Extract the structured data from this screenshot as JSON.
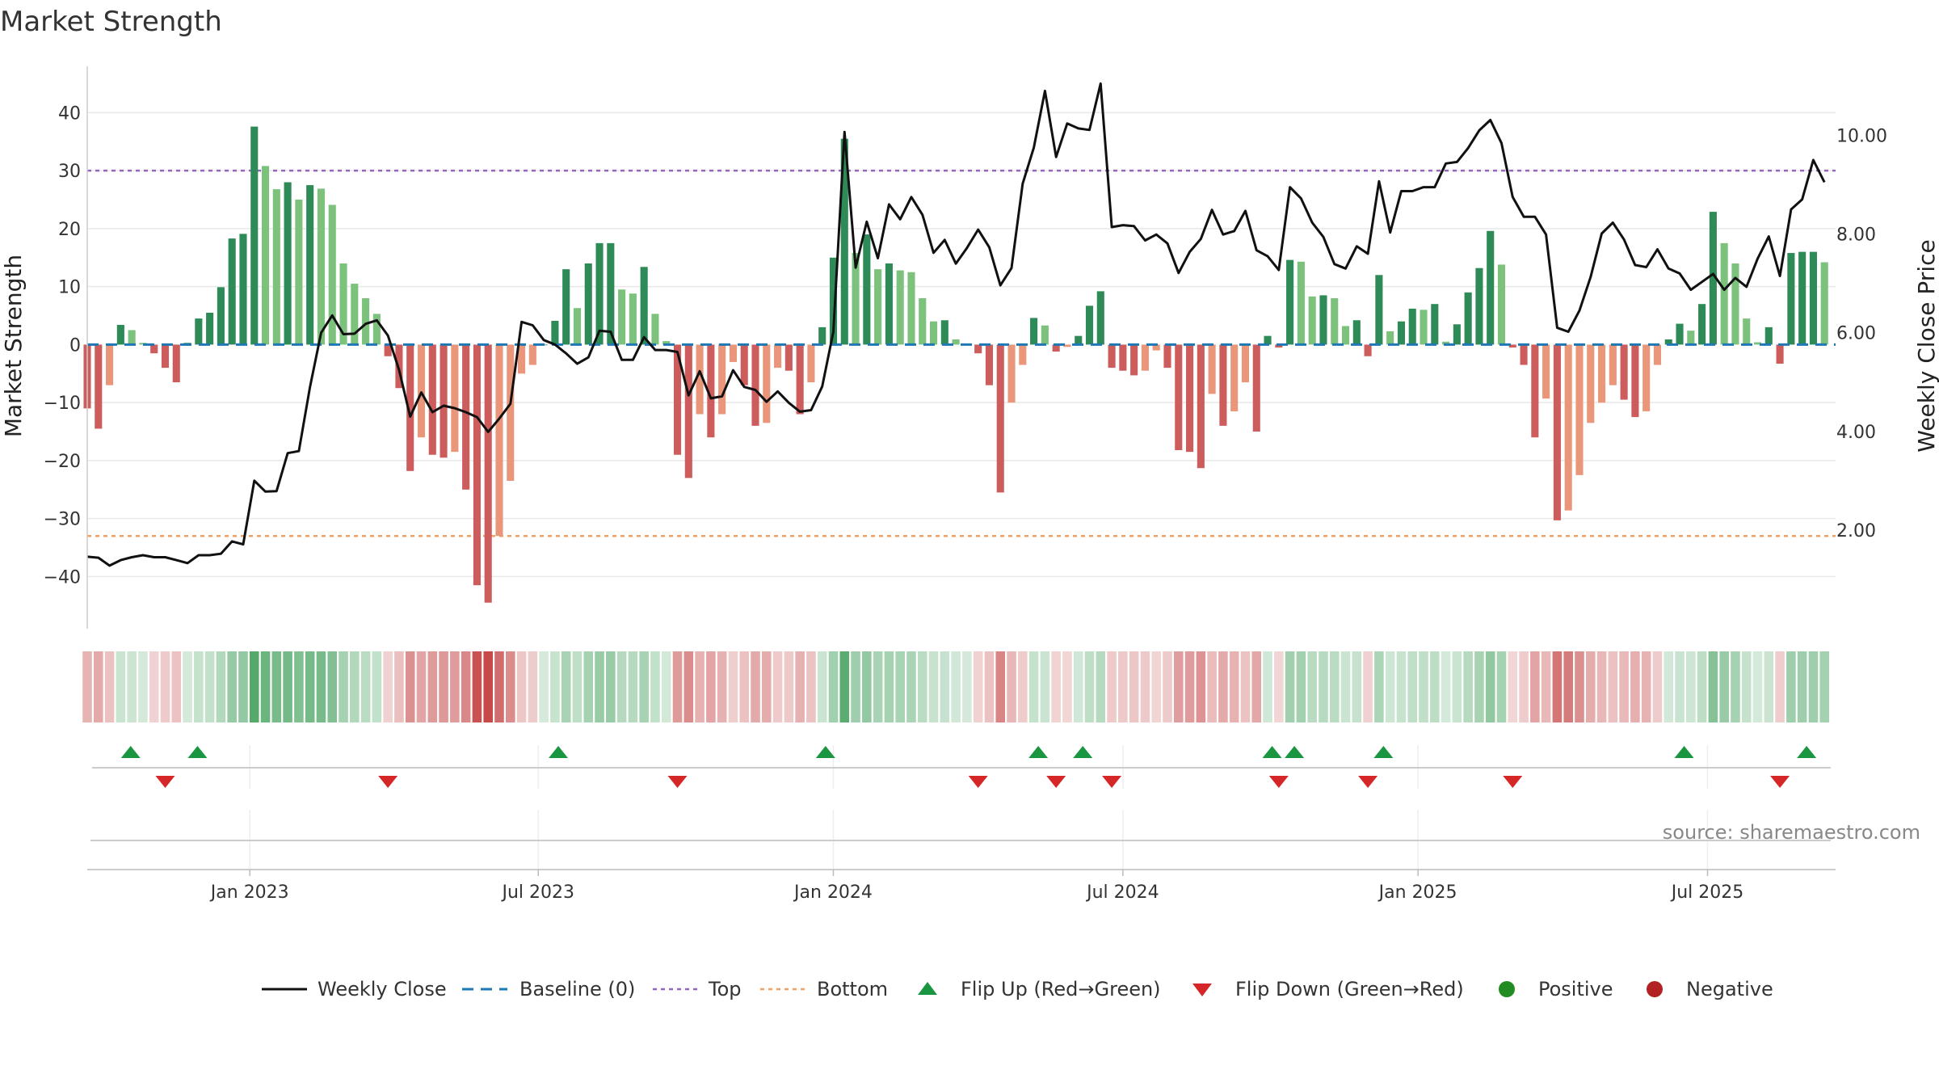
{
  "chart_data": {
    "type": "bar+line",
    "title": "Market Strength",
    "source": "source: sharemaestro.com",
    "ylabel_left": "Market Strength",
    "ylabel_right": "Weekly Close Price",
    "ylim_left": [
      -49,
      48
    ],
    "ylim_right": [
      0.0,
      11.4
    ],
    "yticks_left": [
      {
        "v": 40,
        "label": "40"
      },
      {
        "v": 30,
        "label": "30"
      },
      {
        "v": 20,
        "label": "20"
      },
      {
        "v": 10,
        "label": "10"
      },
      {
        "v": 0,
        "label": "0"
      },
      {
        "v": -10,
        "label": "−10"
      },
      {
        "v": -20,
        "label": "−20"
      },
      {
        "v": -30,
        "label": "−30"
      },
      {
        "v": -40,
        "label": "−40"
      }
    ],
    "yticks_right": [
      {
        "v": 10,
        "label": "10.00"
      },
      {
        "v": 8,
        "label": "8.00"
      },
      {
        "v": 6,
        "label": "6.00"
      },
      {
        "v": 4,
        "label": "4.00"
      },
      {
        "v": 2,
        "label": "2.00"
      }
    ],
    "x_range_weeks": [
      0,
      157
    ],
    "xticks": [
      {
        "week": 14.6,
        "label": "Jan 2023"
      },
      {
        "week": 40.5,
        "label": "Jul 2023"
      },
      {
        "week": 67.0,
        "label": "Jan 2024"
      },
      {
        "week": 93.0,
        "label": "Jul 2024"
      },
      {
        "week": 119.5,
        "label": "Jan 2025"
      },
      {
        "week": 145.5,
        "label": "Jul 2025"
      }
    ],
    "top_threshold": 30,
    "bottom_threshold": -33,
    "bars": [
      -11.0,
      -14.5,
      -7.0,
      3.4,
      2.5,
      0.3,
      -1.5,
      -4.0,
      -6.5,
      0.3,
      4.5,
      5.5,
      9.9,
      18.3,
      19.1,
      37.6,
      30.8,
      26.8,
      28.0,
      25.0,
      27.5,
      26.9,
      24.1,
      14.0,
      10.5,
      8.0,
      5.3,
      -2.0,
      -7.5,
      -21.8,
      -16.0,
      -19.0,
      -19.5,
      -18.5,
      -25.0,
      -41.5,
      -44.5,
      -33.0,
      -23.5,
      -5.0,
      -3.5,
      0.0,
      4.1,
      13.0,
      6.3,
      14.0,
      17.5,
      17.5,
      9.5,
      8.8,
      13.4,
      5.3,
      0.6,
      -19.0,
      -23.0,
      -12.0,
      -16.0,
      -12.0,
      -3.0,
      -7.0,
      -14.0,
      -13.5,
      -4.0,
      -4.5,
      -12.0,
      -6.5,
      3.0,
      15.0,
      35.5,
      15.8,
      19.0,
      13.0,
      14.0,
      12.8,
      12.5,
      8.0,
      4.0,
      4.2,
      0.9,
      0.2,
      -1.5,
      -7.0,
      -25.5,
      -10.0,
      -3.5,
      4.6,
      3.3,
      -1.2,
      -0.4,
      1.5,
      6.7,
      9.2,
      -4.0,
      -4.5,
      -5.3,
      -4.5,
      -1.0,
      -4.0,
      -18.2,
      -18.5,
      -21.3,
      -8.5,
      -14.0,
      -11.5,
      -6.5,
      -15.0,
      1.5,
      -0.5,
      14.6,
      14.3,
      8.3,
      8.5,
      8.0,
      3.2,
      4.2,
      -2.0,
      12.0,
      2.3,
      4.0,
      6.2,
      6.0,
      7.0,
      0.5,
      3.5,
      9.0,
      13.2,
      19.6,
      13.8,
      -0.5,
      -3.5,
      -16.0,
      -9.3,
      -30.3,
      -28.6,
      -22.5,
      -13.5,
      -10.0,
      -7.0,
      -9.5,
      -12.5,
      -11.5,
      -3.5,
      0.9,
      3.6,
      2.4,
      7.0,
      22.9,
      17.5,
      14.0,
      4.5,
      0.4,
      3.0,
      -3.3,
      15.8,
      16.0,
      16.0,
      14.2
    ],
    "close": [
      1.46,
      1.44,
      1.28,
      1.39,
      1.45,
      1.49,
      1.45,
      1.45,
      1.39,
      1.33,
      1.49,
      1.49,
      1.52,
      1.77,
      1.71,
      3.0,
      2.78,
      2.79,
      3.56,
      3.6,
      4.9,
      6.0,
      6.35,
      5.97,
      5.98,
      6.18,
      6.25,
      5.94,
      5.25,
      4.3,
      4.79,
      4.39,
      4.52,
      4.47,
      4.39,
      4.29,
      3.99,
      4.26,
      4.56,
      6.22,
      6.15,
      5.85,
      5.76,
      5.58,
      5.37,
      5.5,
      6.04,
      6.02,
      5.45,
      5.45,
      5.91,
      5.65,
      5.65,
      5.61,
      4.73,
      5.22,
      4.67,
      4.71,
      5.24,
      4.9,
      4.84,
      4.6,
      4.81,
      4.58,
      4.4,
      4.43,
      4.91,
      6.02,
      10.07,
      7.32,
      8.25,
      7.51,
      8.6,
      8.3,
      8.75,
      8.39,
      7.62,
      7.88,
      7.4,
      7.72,
      8.09,
      7.73,
      6.96,
      7.31,
      9.02,
      9.75,
      10.9,
      9.56,
      10.24,
      10.14,
      10.11,
      11.05,
      8.14,
      8.18,
      8.16,
      7.87,
      7.99,
      7.81,
      7.21,
      7.64,
      7.9,
      8.49,
      7.99,
      8.06,
      8.47,
      7.67,
      7.55,
      7.27,
      8.95,
      8.72,
      8.23,
      7.94,
      7.39,
      7.3,
      7.75,
      7.6,
      9.07,
      8.03,
      8.87,
      8.87,
      8.95,
      8.95,
      9.43,
      9.46,
      9.74,
      10.1,
      10.31,
      9.84,
      8.75,
      8.35,
      8.35,
      7.99,
      6.1,
      6.02,
      6.45,
      7.13,
      8.01,
      8.23,
      7.89,
      7.37,
      7.33,
      7.69,
      7.3,
      7.2,
      6.87,
      7.03,
      7.19,
      6.87,
      7.11,
      6.93,
      7.5,
      7.95,
      7.15,
      8.5,
      8.7,
      9.5,
      9.05
    ],
    "flips_up_weeks": [
      3.9,
      9.9,
      42.3,
      66.3,
      85.4,
      89.4,
      106.4,
      108.4,
      116.4,
      143.4,
      154.4
    ],
    "flips_down_weeks": [
      7.0,
      27.0,
      53.0,
      80.0,
      87.0,
      92.0,
      107.0,
      115.0,
      128.0,
      152.0
    ],
    "legend": [
      "Weekly Close",
      "Baseline (0)",
      "Top",
      "Bottom",
      "Flip Up (Red→Green)",
      "Flip Down (Green→Red)",
      "Positive",
      "Negative"
    ],
    "colors": {
      "pos_strong": "#2e8b57",
      "pos_light": "#7cc27c",
      "neg_strong": "#cd5c5c",
      "neg_light": "#e9967a",
      "close_line": "#111111",
      "baseline": "#1f77b4",
      "top": "#9467bd",
      "bottom": "#f0a060",
      "flip_up": "#1a9641",
      "flip_down": "#d62728",
      "positive_dot": "#228b22",
      "negative_dot": "#b22222",
      "grid": "#e8e8e8"
    }
  }
}
